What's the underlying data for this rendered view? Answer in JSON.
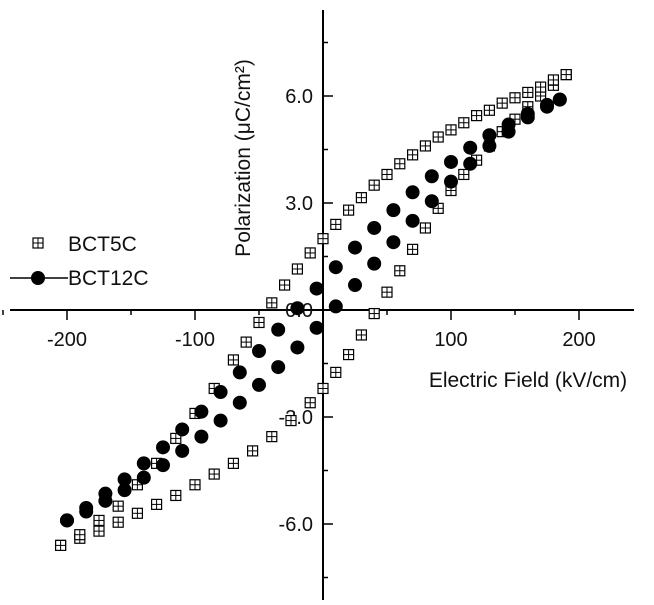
{
  "chart_data": {
    "type": "scatter",
    "xlabel": "Electric Field (kV/cm)",
    "ylabel": "Polarization (μC/cm²)",
    "xlim": [
      -250,
      230
    ],
    "ylim": [
      -9.0,
      9.5
    ],
    "x_ticks": [
      -200,
      -100,
      0,
      100,
      200
    ],
    "x_tick_labels": [
      "-200",
      "-100",
      "0",
      "100",
      "200"
    ],
    "y_ticks": [
      -6.0,
      -3.0,
      0.0,
      3.0,
      6.0
    ],
    "y_tick_labels": [
      "-6.0",
      "-3.0",
      "0.0",
      "3.0",
      "6.0"
    ],
    "axes_style": "crossed-at-origin",
    "grid": false,
    "legend_position": "left-middle",
    "series": [
      {
        "name": "BCT5C",
        "marker": "square-crossed",
        "color": "#000000",
        "branch_upper": {
          "x": [
            -205,
            -190,
            -175,
            -160,
            -145,
            -130,
            -115,
            -100,
            -85,
            -70,
            -60,
            -50,
            -40,
            -30,
            -20,
            -10,
            0,
            10,
            20,
            30,
            40,
            50,
            60,
            70,
            80,
            90,
            100,
            110,
            120,
            130,
            140,
            150,
            160,
            170,
            180,
            190
          ],
          "y": [
            -6.6,
            -6.3,
            -5.9,
            -5.5,
            -4.9,
            -4.3,
            -3.6,
            -2.9,
            -2.2,
            -1.4,
            -0.9,
            -0.35,
            0.2,
            0.7,
            1.15,
            1.6,
            2.0,
            2.4,
            2.8,
            3.15,
            3.5,
            3.8,
            4.1,
            4.35,
            4.6,
            4.85,
            5.05,
            5.25,
            5.45,
            5.6,
            5.8,
            5.95,
            6.1,
            6.25,
            6.45,
            6.6
          ]
        },
        "branch_lower": {
          "x": [
            -205,
            -190,
            -175,
            -160,
            -145,
            -130,
            -115,
            -100,
            -85,
            -70,
            -55,
            -40,
            -25,
            -10,
            0,
            10,
            20,
            30,
            40,
            50,
            60,
            70,
            80,
            90,
            100,
            110,
            120,
            130,
            140,
            150,
            160,
            170,
            180,
            190
          ],
          "y": [
            -6.6,
            -6.4,
            -6.2,
            -5.95,
            -5.7,
            -5.45,
            -5.2,
            -4.9,
            -4.6,
            -4.3,
            -3.95,
            -3.55,
            -3.1,
            -2.6,
            -2.2,
            -1.75,
            -1.25,
            -0.7,
            -0.1,
            0.5,
            1.1,
            1.7,
            2.3,
            2.85,
            3.35,
            3.8,
            4.2,
            4.6,
            5.0,
            5.35,
            5.7,
            6.0,
            6.3,
            6.6
          ]
        }
      },
      {
        "name": "BCT12C",
        "marker": "circle-filled",
        "color": "#000000",
        "branch_upper": {
          "x": [
            -200,
            -185,
            -170,
            -155,
            -140,
            -125,
            -110,
            -95,
            -80,
            -65,
            -50,
            -35,
            -20,
            -5,
            10,
            25,
            40,
            55,
            70,
            85,
            100,
            115,
            130,
            145,
            160,
            175,
            185
          ],
          "y": [
            -5.9,
            -5.55,
            -5.15,
            -4.75,
            -4.3,
            -3.85,
            -3.35,
            -2.85,
            -2.3,
            -1.75,
            -1.15,
            -0.55,
            0.05,
            0.6,
            1.2,
            1.75,
            2.3,
            2.8,
            3.3,
            3.75,
            4.15,
            4.55,
            4.9,
            5.2,
            5.5,
            5.75,
            5.9
          ]
        },
        "branch_lower": {
          "x": [
            -200,
            -185,
            -170,
            -155,
            -140,
            -125,
            -110,
            -95,
            -80,
            -65,
            -50,
            -35,
            -20,
            -5,
            10,
            25,
            40,
            55,
            70,
            85,
            100,
            115,
            130,
            145,
            160,
            175,
            185
          ],
          "y": [
            -5.9,
            -5.65,
            -5.35,
            -5.05,
            -4.7,
            -4.35,
            -3.95,
            -3.55,
            -3.1,
            -2.6,
            -2.1,
            -1.6,
            -1.05,
            -0.5,
            0.1,
            0.7,
            1.3,
            1.9,
            2.5,
            3.05,
            3.6,
            4.1,
            4.6,
            5.0,
            5.4,
            5.7,
            5.9
          ]
        }
      }
    ]
  }
}
